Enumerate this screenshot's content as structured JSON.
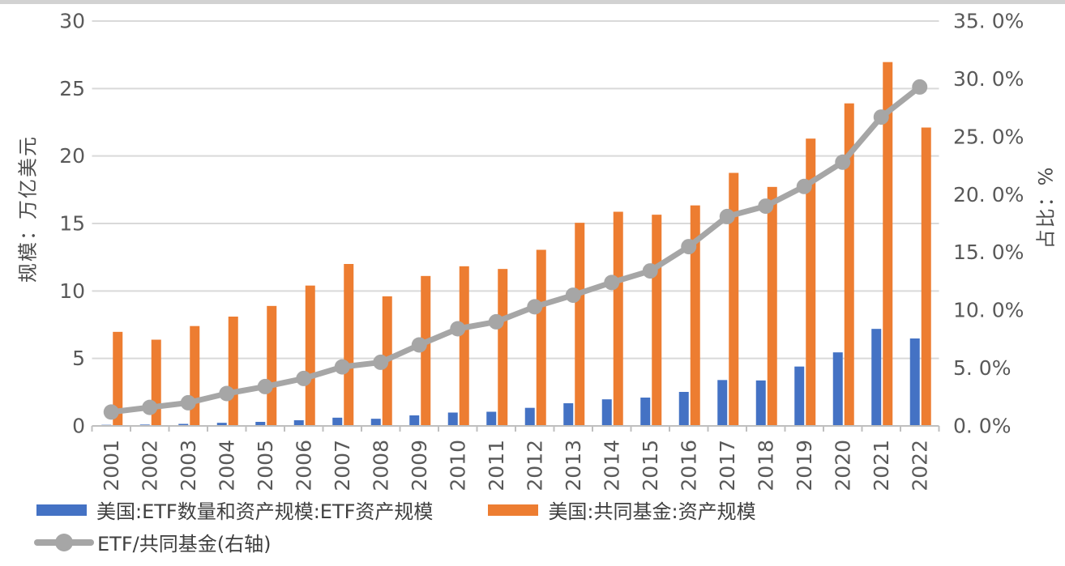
{
  "chart_data": {
    "type": "combo",
    "categories": [
      "2001",
      "2002",
      "2003",
      "2004",
      "2005",
      "2006",
      "2007",
      "2008",
      "2009",
      "2010",
      "2011",
      "2012",
      "2013",
      "2014",
      "2015",
      "2016",
      "2017",
      "2018",
      "2019",
      "2020",
      "2021",
      "2022"
    ],
    "series": [
      {
        "name": "美国:ETF数量和资产规模:ETF资产规模",
        "type": "bar",
        "axis": "left",
        "color": "#4472C4",
        "values": [
          0.08,
          0.1,
          0.15,
          0.23,
          0.3,
          0.42,
          0.61,
          0.53,
          0.78,
          0.99,
          1.05,
          1.34,
          1.68,
          1.97,
          2.1,
          2.52,
          3.4,
          3.37,
          4.4,
          5.45,
          7.19,
          6.48
        ]
      },
      {
        "name": "美国:共同基金:资产规模",
        "type": "bar",
        "axis": "left",
        "color": "#ED7D31",
        "values": [
          6.97,
          6.39,
          7.4,
          8.1,
          8.89,
          10.4,
          12.0,
          9.6,
          11.11,
          11.83,
          11.63,
          13.05,
          15.05,
          15.87,
          15.65,
          16.34,
          18.75,
          17.71,
          21.29,
          23.9,
          26.96,
          22.11
        ]
      },
      {
        "name": "ETF/共同基金(右轴)",
        "type": "line",
        "axis": "right",
        "color": "#A6A6A6",
        "values": [
          1.2,
          1.6,
          2.0,
          2.8,
          3.4,
          4.1,
          5.1,
          5.5,
          7.0,
          8.4,
          9.0,
          10.3,
          11.3,
          12.4,
          13.4,
          15.5,
          18.1,
          19.0,
          20.7,
          22.8,
          26.7,
          29.3
        ]
      }
    ],
    "left_axis": {
      "title": "规模：万亿美元",
      "min": 0,
      "max": 30,
      "step": 5,
      "tick_labels": [
        "0",
        "5",
        "10",
        "15",
        "20",
        "25",
        "30"
      ]
    },
    "right_axis": {
      "title": "占比：%",
      "min": 0,
      "max": 35,
      "step": 5,
      "tick_labels": [
        "0. 0%",
        "5. 0%",
        "10. 0%",
        "15. 0%",
        "20. 0%",
        "25. 0%",
        "30. 0%",
        "35. 0%"
      ]
    },
    "grid": true,
    "legend_position": "bottom-left",
    "colors": {
      "gridline": "#d9d9d9",
      "axis_line": "#bfbfbf",
      "tick_text": "#595959",
      "legend_text": "#3f3f3f"
    }
  }
}
